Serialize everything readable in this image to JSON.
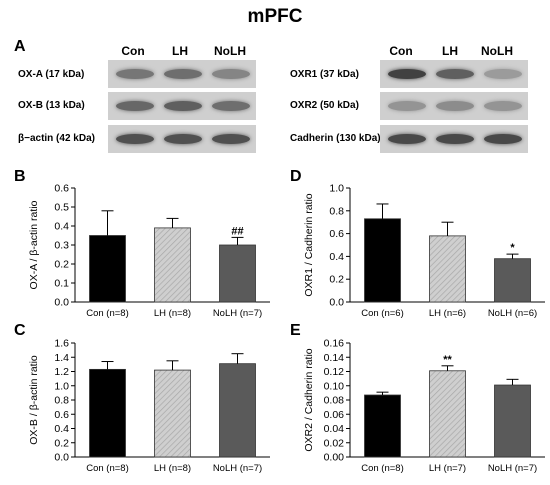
{
  "title": "mPFC",
  "panel_A": {
    "letter": "A",
    "lanes": [
      "Con",
      "LH",
      "NoLH"
    ],
    "left_labels": [
      "OX-A (17 kDa)",
      "OX-B (13 kDa)",
      "β−actin (42 kDa)"
    ],
    "right_labels": [
      "OXR1 (37 kDa)",
      "OXR2 (50 kDa)",
      "Cadherin (130 kDa)"
    ],
    "band_intensity_left": [
      [
        0.55,
        0.6,
        0.45
      ],
      [
        0.65,
        0.7,
        0.6
      ],
      [
        0.8,
        0.8,
        0.8
      ]
    ],
    "band_intensity_right": [
      [
        0.9,
        0.7,
        0.3
      ],
      [
        0.35,
        0.4,
        0.35
      ],
      [
        0.85,
        0.85,
        0.85
      ]
    ]
  },
  "chart_data": [
    {
      "panel": "B",
      "type": "bar",
      "categories": [
        "Con (n=8)",
        "LH (n=8)",
        "NoLH (n=7)"
      ],
      "values": [
        0.35,
        0.39,
        0.3
      ],
      "errors": [
        0.13,
        0.05,
        0.04
      ],
      "annotations": [
        "",
        "",
        "##"
      ],
      "ylabel": "OX-A / β-actin ratio",
      "ylim": [
        0,
        0.6
      ],
      "yticks": [
        "0.0",
        "0.1",
        "0.2",
        "0.3",
        "0.4",
        "0.5",
        "0.6"
      ],
      "bar_fills": [
        "#000000",
        "#c8c8c8",
        "#5a5a5a"
      ],
      "bar_hatch": [
        false,
        true,
        false
      ]
    },
    {
      "panel": "D",
      "type": "bar",
      "categories": [
        "Con (n=6)",
        "LH (n=6)",
        "NoLH (n=6)"
      ],
      "values": [
        0.73,
        0.58,
        0.38
      ],
      "errors": [
        0.13,
        0.12,
        0.04
      ],
      "annotations": [
        "",
        "",
        "*"
      ],
      "ylabel": "OXR1 / Cadherin ratio",
      "ylim": [
        0,
        1.0
      ],
      "yticks": [
        "0.0",
        "0.2",
        "0.4",
        "0.6",
        "0.8",
        "1.0"
      ],
      "bar_fills": [
        "#000000",
        "#c8c8c8",
        "#5a5a5a"
      ],
      "bar_hatch": [
        false,
        true,
        false
      ]
    },
    {
      "panel": "C",
      "type": "bar",
      "categories": [
        "Con (n=8)",
        "LH (n=8)",
        "NoLH (n=7)"
      ],
      "values": [
        1.23,
        1.22,
        1.31
      ],
      "errors": [
        0.11,
        0.13,
        0.14
      ],
      "annotations": [
        "",
        "",
        ""
      ],
      "ylabel": "OX-B / β-actin ratio",
      "ylim": [
        0,
        1.6
      ],
      "yticks": [
        "0.0",
        "0.2",
        "0.4",
        "0.6",
        "0.8",
        "1.0",
        "1.2",
        "1.4",
        "1.6"
      ],
      "bar_fills": [
        "#000000",
        "#c8c8c8",
        "#5a5a5a"
      ],
      "bar_hatch": [
        false,
        true,
        false
      ]
    },
    {
      "panel": "E",
      "type": "bar",
      "categories": [
        "Con (n=8)",
        "LH (n=7)",
        "NoLH (n=7)"
      ],
      "values": [
        0.087,
        0.121,
        0.101
      ],
      "errors": [
        0.004,
        0.007,
        0.008
      ],
      "annotations": [
        "",
        "**",
        ""
      ],
      "ylabel": "OXR2 / Cadherin ratio",
      "ylim": [
        0,
        0.16
      ],
      "yticks": [
        "0.00",
        "0.02",
        "0.04",
        "0.06",
        "0.08",
        "0.10",
        "0.12",
        "0.14",
        "0.16"
      ],
      "bar_fills": [
        "#000000",
        "#c8c8c8",
        "#5a5a5a"
      ],
      "bar_hatch": [
        false,
        true,
        false
      ]
    }
  ]
}
